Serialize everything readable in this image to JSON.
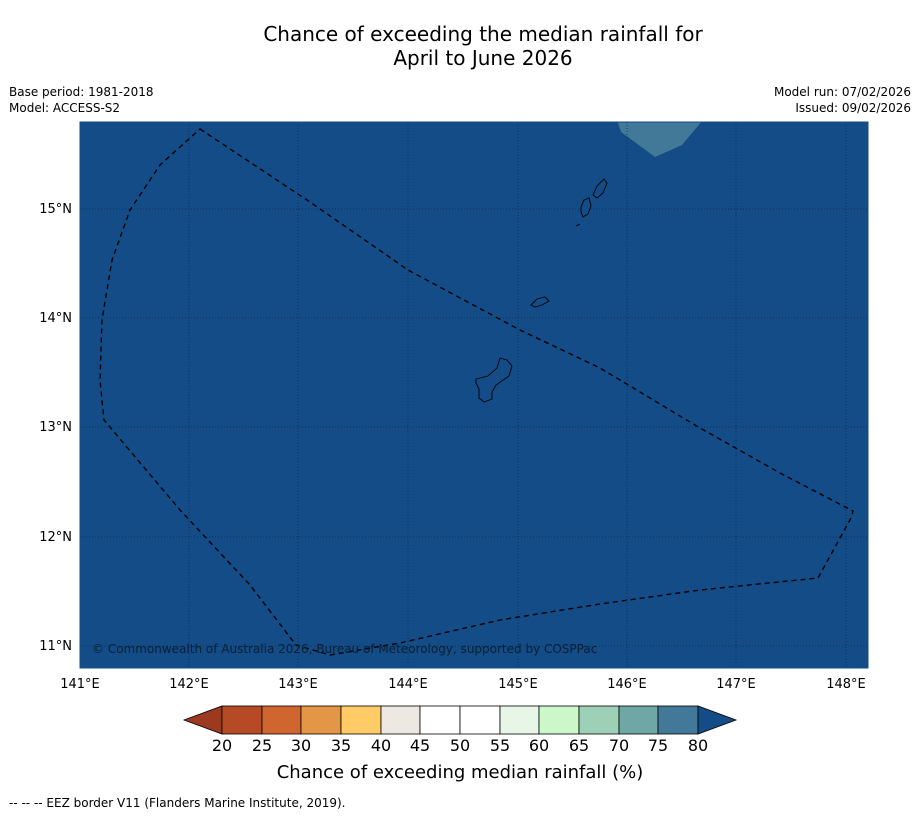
{
  "title_line1": "Chance of exceeding the median rainfall for",
  "title_line2": "April to June 2026",
  "base_period": "Base period: 1981-2018",
  "model": "Model: ACCESS-S2",
  "model_run": "Model run: 07/02/2026",
  "issued": "Issued: 09/02/2026",
  "copyright": "© Commonwealth of Australia 2026, Bureau of Meteorology, supported by COSPPac",
  "footnote": "--  --  -- EEZ border V11 (Flanders Marine Institute, 2019).",
  "colors": {
    "ocean": "#134c86",
    "lighter_patch": "#427898",
    "colorbar": [
      "#9b3a1f",
      "#b64a25",
      "#d06530",
      "#e29646",
      "#fecb66",
      "#ede8e2",
      "#ffffff",
      "#ffffff",
      "#e8f6e8",
      "#caf8c9",
      "#9ecfb7",
      "#6fa6a6",
      "#427898",
      "#134c86"
    ]
  },
  "map": {
    "lon_ticks": [
      "141°E",
      "142°E",
      "143°E",
      "144°E",
      "145°E",
      "146°E",
      "147°E",
      "148°E"
    ],
    "lat_ticks": [
      "15°N",
      "14°N",
      "13°N",
      "12°N",
      "11°N"
    ]
  },
  "colorbar": {
    "ticks": [
      "20",
      "25",
      "30",
      "35",
      "40",
      "45",
      "50",
      "55",
      "60",
      "65",
      "70",
      "75",
      "80"
    ],
    "label": "Chance of exceeding median rainfall (%)"
  }
}
